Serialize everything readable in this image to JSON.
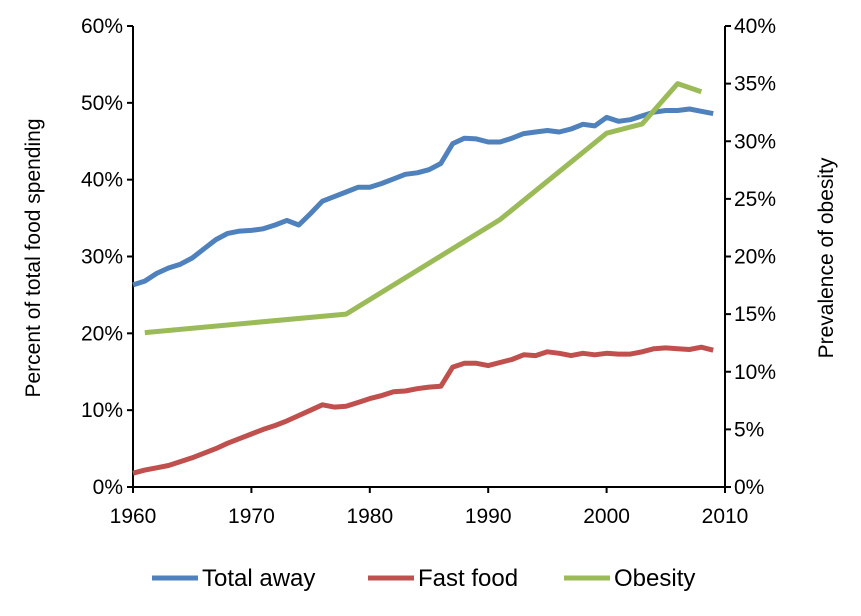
{
  "chart_data": {
    "type": "line",
    "x_axis": {
      "range": [
        1960,
        2010
      ],
      "ticks": [
        1960,
        1970,
        1980,
        1990,
        2000,
        2010
      ],
      "tick_labels": [
        "1960",
        "1970",
        "1980",
        "1990",
        "2000",
        "2010"
      ]
    },
    "y_axis_left": {
      "label": "Percent of total food spending",
      "range": [
        0,
        60
      ],
      "ticks": [
        0,
        10,
        20,
        30,
        40,
        50,
        60
      ],
      "tick_labels": [
        "0%",
        "10%",
        "20%",
        "30%",
        "40%",
        "50%",
        "60%"
      ]
    },
    "y_axis_right": {
      "label": "Prevalence of obesity",
      "range": [
        0,
        40
      ],
      "ticks": [
        0,
        5,
        10,
        15,
        20,
        25,
        30,
        35,
        40
      ],
      "tick_labels": [
        "0%",
        "5%",
        "10%",
        "15%",
        "20%",
        "25%",
        "30%",
        "35%",
        "40%"
      ]
    },
    "grid": false,
    "legend_position": "bottom",
    "series": [
      {
        "name": "Total away",
        "axis": "left",
        "color": "#4f81bd",
        "x": [
          1960,
          1961,
          1962,
          1963,
          1964,
          1965,
          1966,
          1967,
          1968,
          1969,
          1970,
          1971,
          1972,
          1973,
          1974,
          1975,
          1976,
          1977,
          1978,
          1979,
          1980,
          1981,
          1982,
          1983,
          1984,
          1985,
          1986,
          1987,
          1988,
          1989,
          1990,
          1991,
          1992,
          1993,
          1994,
          1995,
          1996,
          1997,
          1998,
          1999,
          2000,
          2001,
          2002,
          2003,
          2004,
          2005,
          2006,
          2007,
          2008,
          2009
        ],
        "y": [
          26.3,
          26.8,
          27.8,
          28.5,
          29.0,
          29.8,
          31.0,
          32.2,
          33.0,
          33.3,
          33.4,
          33.6,
          34.1,
          34.7,
          34.1,
          35.6,
          37.2,
          37.8,
          38.4,
          39.0,
          39.0,
          39.5,
          40.1,
          40.7,
          40.9,
          41.3,
          42.1,
          44.7,
          45.4,
          45.3,
          44.9,
          44.9,
          45.4,
          46.0,
          46.2,
          46.4,
          46.2,
          46.6,
          47.2,
          47.0,
          48.1,
          47.6,
          47.8,
          48.3,
          48.8,
          49.0,
          49.0,
          49.2,
          48.9,
          48.6
        ]
      },
      {
        "name": "Fast food",
        "axis": "left",
        "color": "#c0504d",
        "x": [
          1960,
          1961,
          1962,
          1963,
          1964,
          1965,
          1966,
          1967,
          1968,
          1969,
          1970,
          1971,
          1972,
          1973,
          1974,
          1975,
          1976,
          1977,
          1978,
          1979,
          1980,
          1981,
          1982,
          1983,
          1984,
          1985,
          1986,
          1987,
          1988,
          1989,
          1990,
          1991,
          1992,
          1993,
          1994,
          1995,
          1996,
          1997,
          1998,
          1999,
          2000,
          2001,
          2002,
          2003,
          2004,
          2005,
          2006,
          2007,
          2008,
          2009
        ],
        "y": [
          1.8,
          2.2,
          2.5,
          2.8,
          3.3,
          3.8,
          4.4,
          5.0,
          5.7,
          6.3,
          6.9,
          7.5,
          8.0,
          8.6,
          9.3,
          10.0,
          10.7,
          10.4,
          10.5,
          11.0,
          11.5,
          11.9,
          12.4,
          12.5,
          12.8,
          13.0,
          13.1,
          15.6,
          16.1,
          16.1,
          15.8,
          16.2,
          16.6,
          17.2,
          17.1,
          17.6,
          17.4,
          17.1,
          17.4,
          17.2,
          17.4,
          17.3,
          17.3,
          17.6,
          18.0,
          18.1,
          18.0,
          17.9,
          18.2,
          17.8
        ]
      },
      {
        "name": "Obesity",
        "axis": "right",
        "color": "#9bbb59",
        "x": [
          1961,
          1978,
          1991,
          2000,
          2003,
          2006,
          2008
        ],
        "y": [
          13.4,
          15.0,
          23.2,
          30.7,
          31.5,
          35.0,
          34.3
        ]
      }
    ]
  }
}
